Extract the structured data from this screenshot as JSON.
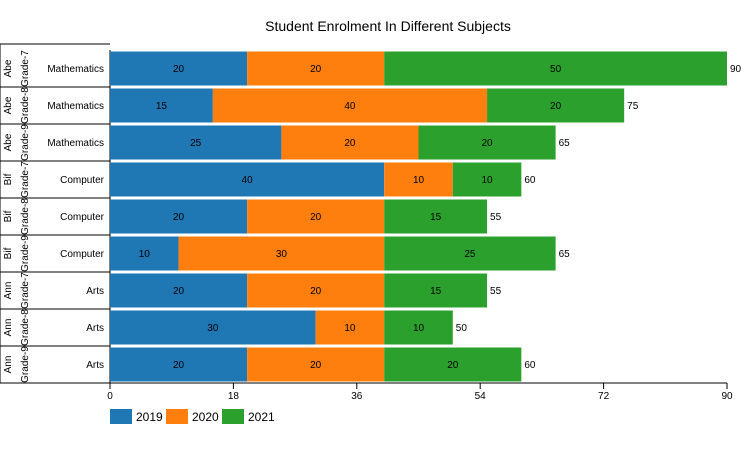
{
  "chart_data": {
    "type": "bar",
    "orientation": "horizontal",
    "stacked": true,
    "title": "Student Enrolment In Different Subjects",
    "xlim": [
      0,
      90
    ],
    "x_ticks": [
      0,
      18,
      36,
      54,
      72,
      90
    ],
    "rows": [
      {
        "group": "Grade-7",
        "name": "Abe",
        "category": "Mathematics",
        "total": 90
      },
      {
        "group": "Grade-8",
        "name": "Abe",
        "category": "Mathematics",
        "total": 75
      },
      {
        "group": "Grade-9",
        "name": "Abe",
        "category": "Mathematics",
        "total": 65
      },
      {
        "group": "Grade-7",
        "name": "Bif",
        "category": "Computer",
        "total": 60
      },
      {
        "group": "Grade-8",
        "name": "Bif",
        "category": "Computer",
        "total": 55
      },
      {
        "group": "Grade-9",
        "name": "Bif",
        "category": "Computer",
        "total": 65
      },
      {
        "group": "Grade-7",
        "name": "Ann",
        "category": "Arts",
        "total": 55
      },
      {
        "group": "Grade-8",
        "name": "Ann",
        "category": "Arts",
        "total": 50
      },
      {
        "group": "Grade-9",
        "name": "Ann",
        "category": "Arts",
        "total": 60
      }
    ],
    "series": [
      {
        "name": "2019",
        "color": "#1f77b4",
        "values": [
          20,
          15,
          25,
          40,
          20,
          10,
          20,
          30,
          20
        ]
      },
      {
        "name": "2020",
        "color": "#ff7f0e",
        "values": [
          20,
          40,
          20,
          10,
          20,
          30,
          20,
          10,
          20
        ]
      },
      {
        "name": "2021",
        "color": "#2ca02c",
        "values": [
          50,
          20,
          20,
          10,
          15,
          25,
          15,
          10,
          20
        ]
      }
    ],
    "legend_position": "bottom-left",
    "grid": false
  }
}
